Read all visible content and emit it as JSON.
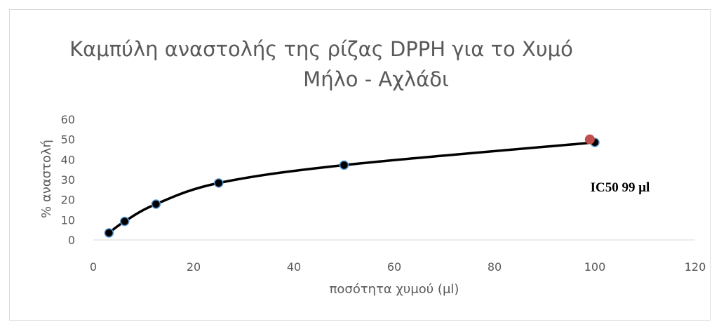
{
  "chart_data": {
    "type": "scatter",
    "title_lines": [
      "Καμπύλη αναστολής της ρίζας DPPH για το Χυμό",
      "Μήλο - Αχλάδι"
    ],
    "xlabel": "ποσότητα χυμού (μl)",
    "ylabel": "% αναστολή",
    "xlim": [
      0,
      120
    ],
    "ylim": [
      0,
      60
    ],
    "x_ticks": [
      0,
      20,
      40,
      60,
      80,
      100,
      120
    ],
    "y_ticks": [
      0,
      10,
      20,
      30,
      40,
      50,
      60
    ],
    "grid": false,
    "smoothed_line": true,
    "series": [
      {
        "x": [
          3.125,
          6.25,
          12.5,
          25,
          50,
          100
        ],
        "y": [
          3.5,
          9.2,
          17.8,
          28.3,
          37.2,
          48.5
        ],
        "color": "#000000",
        "marker_color": "#000000",
        "marker_edge": "#5b9bd5"
      }
    ],
    "highlight_point": {
      "x": 99,
      "y": 50,
      "color": "#c0504d"
    },
    "annotation": "IC50 99 μl"
  }
}
